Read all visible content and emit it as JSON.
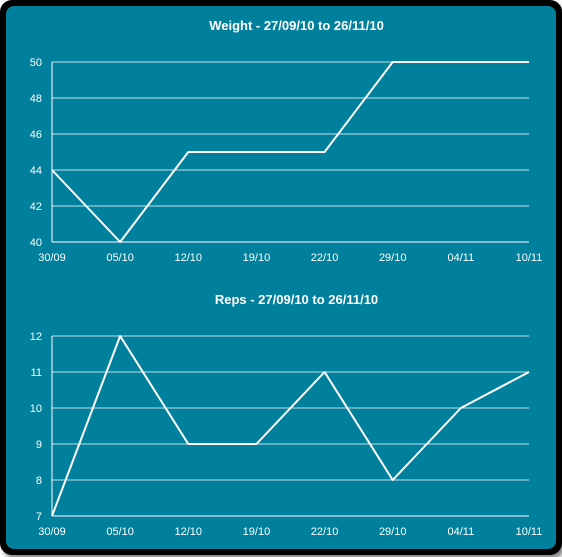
{
  "colors": {
    "background": "#00809c",
    "ink": "#ffffff",
    "frame": "#000000"
  },
  "chart_data": [
    {
      "type": "line",
      "title": "Weight - 27/09/10 to 26/11/10",
      "categories": [
        "30/09",
        "05/10",
        "12/10",
        "19/10",
        "22/10",
        "29/10",
        "04/11",
        "10/11"
      ],
      "yticks": [
        "40",
        "42",
        "44",
        "46",
        "48",
        "50"
      ],
      "ylim": [
        40,
        50
      ],
      "grid": true,
      "series": [
        {
          "values": [
            44,
            40,
            45,
            45,
            45,
            50,
            50,
            50
          ]
        }
      ]
    },
    {
      "type": "line",
      "title": "Reps - 27/09/10 to 26/11/10",
      "categories": [
        "30/09",
        "05/10",
        "12/10",
        "19/10",
        "22/10",
        "29/10",
        "04/11",
        "10/11"
      ],
      "yticks": [
        "7",
        "8",
        "9",
        "10",
        "11",
        "12"
      ],
      "ylim": [
        7,
        12
      ],
      "grid": true,
      "series": [
        {
          "values": [
            7,
            12,
            9,
            9,
            11,
            8,
            10,
            11
          ]
        }
      ]
    }
  ]
}
